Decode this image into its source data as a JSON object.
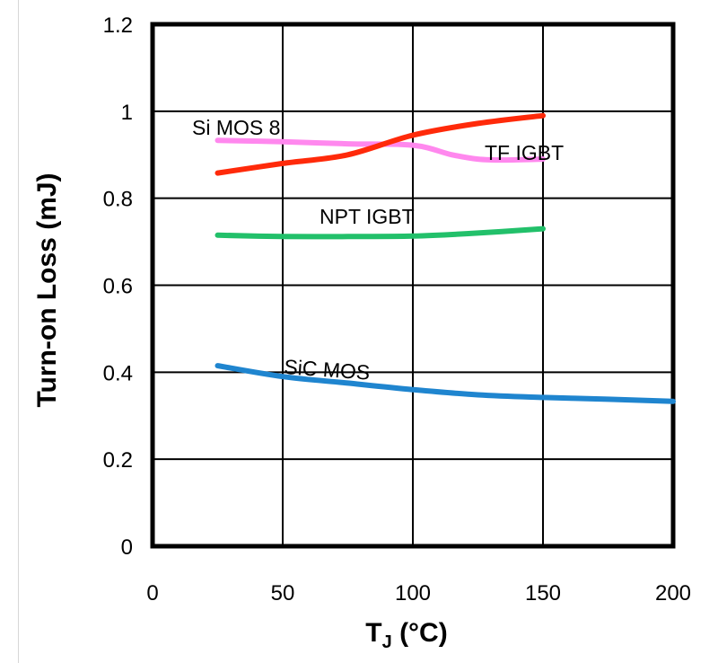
{
  "chart_data": {
    "type": "line",
    "title": "",
    "xlabel_main": "T",
    "xlabel_sub": "J",
    "xlabel_rest": " (°C)",
    "ylabel": "Turn-on Loss (mJ)",
    "xlim": [
      0,
      200
    ],
    "ylim": [
      0,
      1.2
    ],
    "x_ticks": [
      "0",
      "50",
      "100",
      "150",
      "200"
    ],
    "y_ticks": [
      "0",
      "0.2",
      "0.4",
      "0.6",
      "0.8",
      "1",
      "1.2"
    ],
    "grid": true,
    "series": [
      {
        "name": "Si MOS 8",
        "color": "#ff88ee",
        "x": [
          25,
          50,
          75,
          100,
          115,
          125,
          135,
          150
        ],
        "y": [
          0.933,
          0.93,
          0.925,
          0.922,
          0.9,
          0.89,
          0.888,
          0.89
        ]
      },
      {
        "name": "TF IGBT",
        "color": "#ff2a0a",
        "x": [
          25,
          50,
          75,
          100,
          125,
          150
        ],
        "y": [
          0.858,
          0.88,
          0.9,
          0.945,
          0.972,
          0.99
        ]
      },
      {
        "name": "NPT IGBT",
        "color": "#22c06a",
        "x": [
          25,
          50,
          75,
          100,
          125,
          150
        ],
        "y": [
          0.715,
          0.712,
          0.712,
          0.713,
          0.72,
          0.73
        ]
      },
      {
        "name": "SiC MOS",
        "color": "#1f85cf",
        "x": [
          25,
          50,
          75,
          100,
          125,
          150,
          175,
          200
        ],
        "y": [
          0.415,
          0.39,
          0.375,
          0.36,
          0.348,
          0.342,
          0.338,
          0.333
        ]
      }
    ]
  }
}
